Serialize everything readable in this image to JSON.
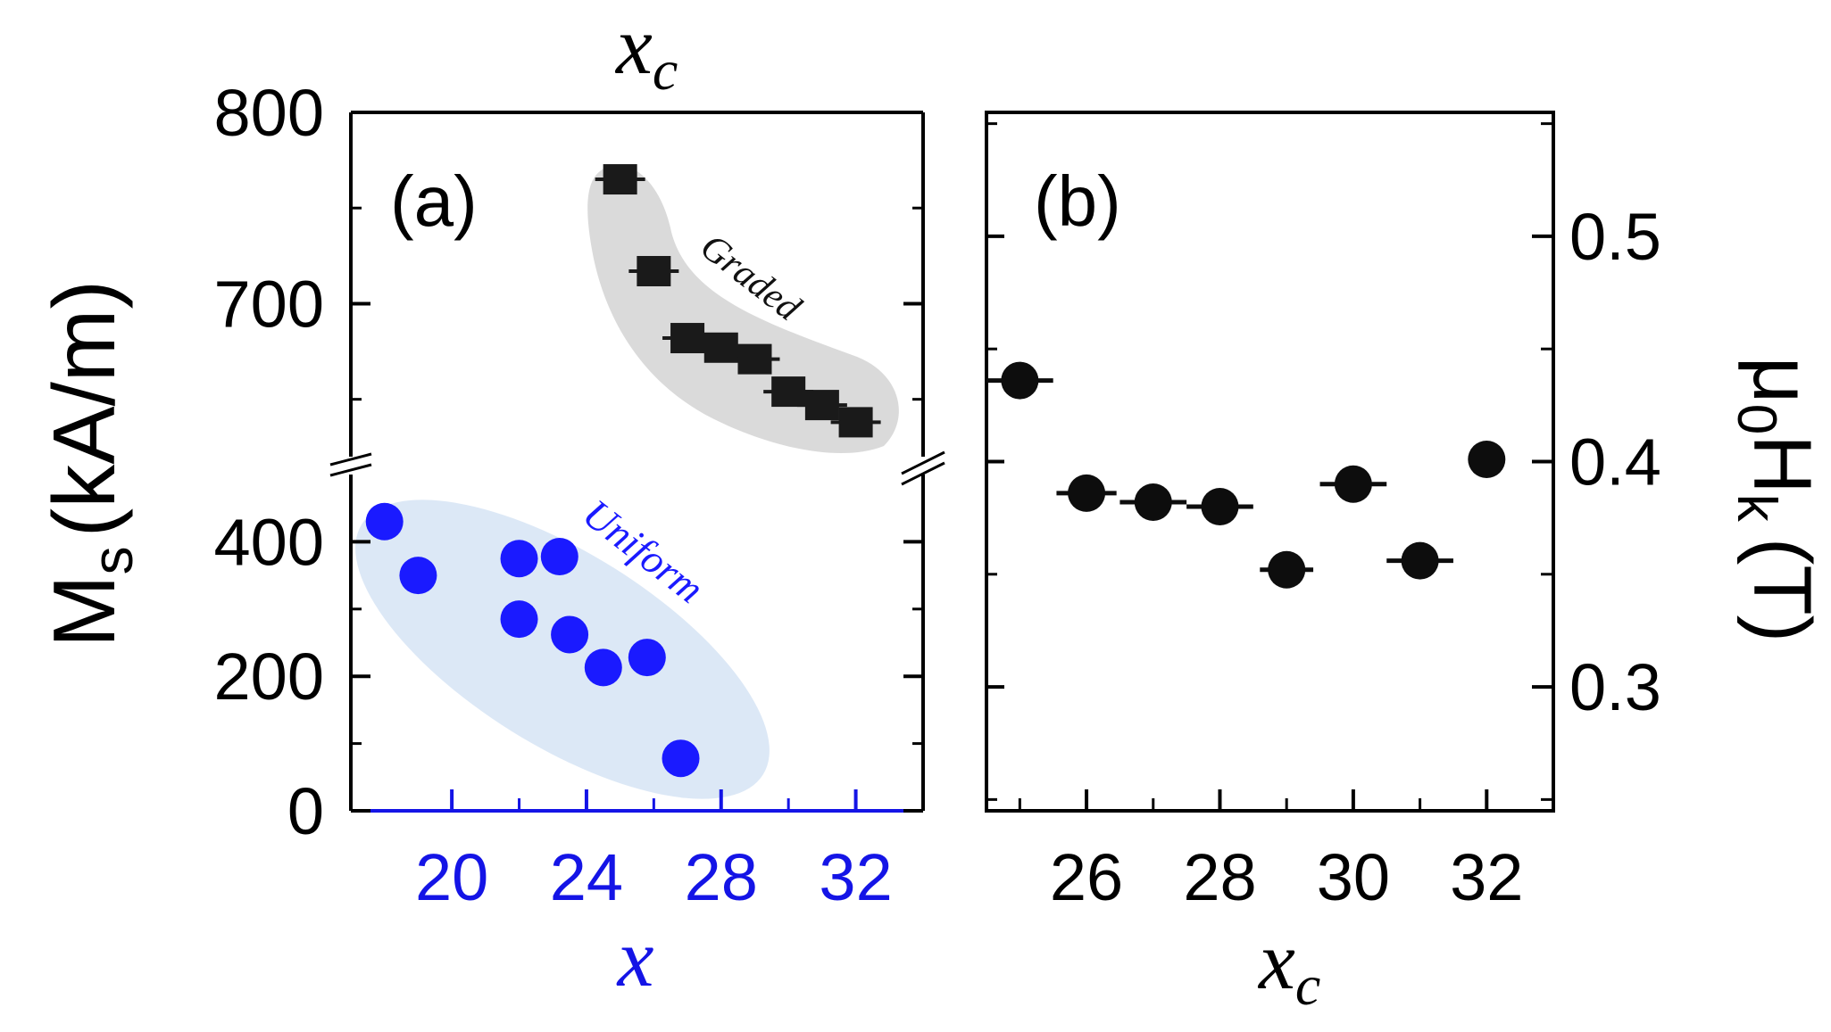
{
  "chart_data": [
    {
      "panel": "a",
      "type": "scatter",
      "panel_label": "(a)",
      "top_xlabel": "x",
      "top_xlabel_sub": "c",
      "bottom_xlabel": "x",
      "ylabel_main": "M",
      "ylabel_sub": "s",
      "ylabel_units": "(kA/m)",
      "y_axis_broken": true,
      "yticks_lower": [
        0,
        200,
        400
      ],
      "yticks_upper": [
        700,
        800
      ],
      "ylim_lower": [
        0,
        500
      ],
      "ylim_upper": [
        620,
        800
      ],
      "xlim": [
        17,
        34
      ],
      "xtick_labels": [
        "20",
        "24",
        "28",
        "32"
      ],
      "xticks": [
        20,
        24,
        28,
        32
      ],
      "minor_xticks": [
        22,
        26,
        30
      ],
      "axis_color": "#1414e6",
      "series": [
        {
          "name": "Uniform",
          "label": "Uniform",
          "marker": "circle",
          "color": "#1a1aff",
          "shade_color": "#d6e4f5",
          "x": [
            18,
            19,
            22,
            23.2,
            22,
            23.5,
            24.5,
            25.8,
            26.8
          ],
          "y": [
            430,
            350,
            375,
            378,
            285,
            262,
            213,
            228,
            78
          ]
        },
        {
          "name": "Graded",
          "label": "Graded",
          "marker": "square",
          "color": "#1a1a1a",
          "shade_color": "#d4d4d4",
          "x": [
            25,
            26,
            27,
            28,
            29,
            30,
            31,
            32
          ],
          "y": [
            765,
            717,
            682,
            677,
            671,
            654,
            647,
            638
          ]
        }
      ]
    },
    {
      "panel": "b",
      "type": "scatter",
      "panel_label": "(b)",
      "xlabel": "x",
      "xlabel_sub": "c",
      "ylabel_prefix": "μ",
      "ylabel_sub0": "0",
      "ylabel_H": "H",
      "ylabel_subk": "k",
      "ylabel_units": "(T)",
      "xlim": [
        24.5,
        33
      ],
      "ylim": [
        0.245,
        0.555
      ],
      "xticks": [
        26,
        28,
        30,
        32
      ],
      "xtick_labels": [
        "26",
        "28",
        "30",
        "32"
      ],
      "yticks": [
        0.3,
        0.4,
        0.5
      ],
      "ytick_labels": [
        "0.3",
        "0.4",
        "0.5"
      ],
      "series": [
        {
          "name": "mu0Hk",
          "marker": "circle",
          "color": "#0d0d0d",
          "x": [
            25,
            26,
            27,
            28,
            29,
            30,
            31,
            32
          ],
          "y": [
            0.436,
            0.386,
            0.382,
            0.38,
            0.352,
            0.39,
            0.356,
            0.401
          ],
          "xerr": [
            0.5,
            0.45,
            0.5,
            0.5,
            0.4,
            0.5,
            0.5,
            0.2
          ]
        }
      ]
    }
  ]
}
